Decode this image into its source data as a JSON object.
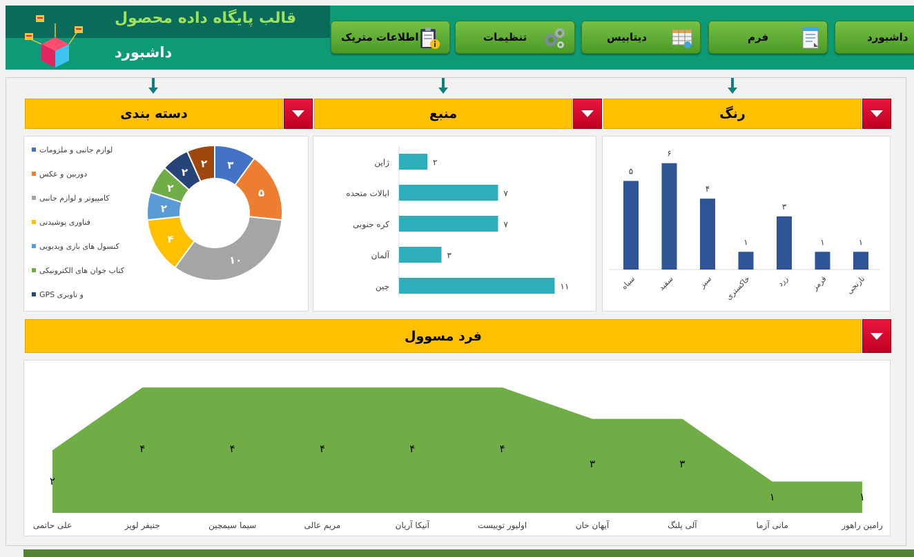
{
  "header": {
    "title": "قالب پایگاه داده محصول",
    "subtitle": "داشبورد"
  },
  "nav": {
    "dashboard": "داشبورد",
    "form": "فرم",
    "database": "دیتابیس",
    "settings": "تنظیمات",
    "metric_info": "اطلاعات متریک"
  },
  "slicers": {
    "category": "دسته بندی",
    "source": "منبع",
    "color": "رنگ",
    "person": "فرد مسوول"
  },
  "colors": {
    "header_green": "#0d9b77",
    "header_dark": "#0b6b5a",
    "title_green": "#9fe35a",
    "slicer_yellow": "#ffc000",
    "dropdown_red": "#d90a30",
    "teal_bar": "#2eaeb8",
    "navy_bar": "#2f5597",
    "area_green": "#70ad47"
  },
  "chart_data": [
    {
      "type": "pie",
      "variant": "donut",
      "legend_position": "left",
      "categories": [
        "لوازم جانبی و ملزومات",
        "دوربین و عکس",
        "کامپیوتر و لوازم جانبی",
        "فناوری پوشیدنی",
        "کنسول های بازی ویدیویی",
        "کتاب خوان های الکترونیکی",
        "GPS و ناوبری"
      ],
      "values": [
        3,
        5,
        10,
        4,
        2,
        2,
        2
      ],
      "value_labels": [
        "۳",
        "۵",
        "۱۰",
        "۴",
        "۲",
        "۲",
        "۲"
      ],
      "extra_slice": {
        "value": 2,
        "label": "۲",
        "color": "#9e480e"
      },
      "colors": [
        "#4472c4",
        "#ed7d31",
        "#a5a5a5",
        "#ffc000",
        "#5b9bd5",
        "#70ad47",
        "#264478"
      ]
    },
    {
      "type": "bar",
      "orientation": "horizontal",
      "categories": [
        "ژاپن",
        "ایالات متحده",
        "کره جنوبی",
        "آلمان",
        "چین"
      ],
      "values": [
        2,
        7,
        7,
        3,
        11
      ],
      "value_labels": [
        "۲",
        "۷",
        "۷",
        "۳",
        "۱۱"
      ],
      "xlim": [
        0,
        12
      ],
      "color": "#2eaeb8"
    },
    {
      "type": "bar",
      "orientation": "vertical",
      "categories": [
        "سیاه",
        "سفید",
        "سبز",
        "خاکستری",
        "زرد",
        "قرمز",
        "نارنجی"
      ],
      "values": [
        5,
        6,
        4,
        1,
        3,
        1,
        1
      ],
      "value_labels": [
        "۵",
        "۶",
        "۴",
        "۱",
        "۳",
        "۱",
        "۱"
      ],
      "ylim": [
        0,
        7
      ],
      "color": "#2f5597"
    },
    {
      "type": "area",
      "categories": [
        "علی حاتمی",
        "جنیفر لوپز",
        "سیما سیمچین",
        "مریم عالی",
        "آنیکا آریان",
        "اولیور توییست",
        "آیهان خان",
        "آلی پلنگ",
        "مانی آزما",
        "رامین راهور"
      ],
      "values": [
        2,
        4,
        4,
        4,
        4,
        4,
        3,
        3,
        1,
        1
      ],
      "value_labels": [
        "۲",
        "۴",
        "۴",
        "۴",
        "۴",
        "۴",
        "۳",
        "۳",
        "۱",
        "۱"
      ],
      "ylim": [
        0,
        4.4
      ],
      "color": "#70ad47"
    }
  ]
}
